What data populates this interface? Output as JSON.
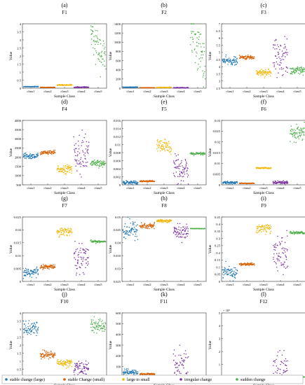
{
  "figure": {
    "ylabel": "Value",
    "xlabel": "Sample Class",
    "categories": [
      "class1",
      "class2",
      "class3",
      "class4",
      "class5"
    ]
  },
  "legend": {
    "items": [
      {
        "label": "stable change (large)",
        "color": "#1f77b4"
      },
      {
        "label": "stable Change (small)",
        "color": "#d95f02"
      },
      {
        "label": "large to small",
        "color": "#f2b705"
      },
      {
        "label": "irregular change",
        "color": "#7b2fa2"
      },
      {
        "label": "sudden change",
        "color": "#4daf4a"
      }
    ]
  },
  "chart_data": [
    {
      "type": "scatter",
      "panel": "(a)",
      "title": "F1",
      "ylim": [
        0,
        4
      ],
      "yticks": [
        "0",
        "0.5",
        "1",
        "1.5",
        "2",
        "2.5",
        "3",
        "3.5",
        "4"
      ],
      "tickvals": [
        0,
        0.5,
        1,
        1.5,
        2,
        2.5,
        3,
        3.5,
        4
      ],
      "y_multiplier": "",
      "classes": [
        {
          "center": 0.1,
          "spread": 0.02,
          "shape": "band"
        },
        {
          "center": 0.05,
          "spread": 0.02,
          "shape": "band"
        },
        {
          "center": 0.2,
          "spread": 0.04,
          "shape": "band"
        },
        {
          "center": 0.06,
          "spread": 0.03,
          "shape": "band"
        },
        {
          "center": 3.3,
          "spread": 2.2,
          "shape": "decay"
        }
      ]
    },
    {
      "type": "scatter",
      "panel": "(b)",
      "title": "F2",
      "ylim": [
        0,
        1400
      ],
      "yticks": [
        "0",
        "200",
        "400",
        "600",
        "800",
        "1000",
        "1200",
        "1400"
      ],
      "tickvals": [
        0,
        200,
        400,
        600,
        800,
        1000,
        1200,
        1400
      ],
      "y_multiplier": "",
      "classes": [
        {
          "center": 20,
          "spread": 10,
          "shape": "band"
        },
        {
          "center": 10,
          "spread": 6,
          "shape": "band"
        },
        {
          "center": 15,
          "spread": 10,
          "shape": "band"
        },
        {
          "center": 10,
          "spread": 8,
          "shape": "band"
        },
        {
          "center": 1250,
          "spread": 1000,
          "shape": "decay"
        }
      ]
    },
    {
      "type": "scatter",
      "panel": "(c)",
      "title": "F3",
      "ylim": [
        2.5,
        7
      ],
      "yticks": [
        "2.5",
        "3",
        "3.5",
        "4",
        "4.5",
        "5",
        "5.5",
        "6",
        "6.5",
        "7"
      ],
      "tickvals": [
        2.5,
        3,
        3.5,
        4,
        4.5,
        5,
        5.5,
        6,
        6.5,
        7
      ],
      "y_multiplier": "",
      "classes": [
        {
          "center": 4.4,
          "spread": 0.3,
          "shape": "band"
        },
        {
          "center": 4.65,
          "spread": 0.15,
          "shape": "band"
        },
        {
          "center": 3.6,
          "spread": 0.3,
          "shape": "band"
        },
        {
          "center": 4.7,
          "spread": 1.6,
          "shape": "irregular"
        },
        {
          "center": 3.7,
          "spread": 0.35,
          "shape": "band"
        }
      ]
    },
    {
      "type": "scatter",
      "panel": "(d)",
      "title": "F4",
      "ylim": [
        500,
        4000
      ],
      "yticks": [
        "500",
        "1000",
        "1500",
        "2000",
        "2500",
        "3000",
        "3500",
        "4000"
      ],
      "tickvals": [
        500,
        1000,
        1500,
        2000,
        2500,
        3000,
        3500,
        4000
      ],
      "y_multiplier": "",
      "classes": [
        {
          "center": 2050,
          "spread": 180,
          "shape": "band"
        },
        {
          "center": 2250,
          "spread": 120,
          "shape": "band"
        },
        {
          "center": 1350,
          "spread": 250,
          "shape": "band"
        },
        {
          "center": 2200,
          "spread": 1300,
          "shape": "irregular"
        },
        {
          "center": 1650,
          "spread": 200,
          "shape": "band"
        }
      ]
    },
    {
      "type": "scatter",
      "panel": "(e)",
      "title": "F5",
      "ylim": [
        0,
        0.016
      ],
      "yticks": [
        "0",
        "0.002",
        "0.004",
        "0.006",
        "0.008",
        "0.01",
        "0.012",
        "0.014",
        "0.016"
      ],
      "tickvals": [
        0,
        0.002,
        0.004,
        0.006,
        0.008,
        0.01,
        0.012,
        0.014,
        0.016
      ],
      "y_multiplier": "",
      "classes": [
        {
          "center": 0.0006,
          "spread": 0.0005,
          "shape": "band"
        },
        {
          "center": 0.0009,
          "spread": 0.0002,
          "shape": "band"
        },
        {
          "center": 0.0095,
          "spread": 0.002,
          "shape": "band"
        },
        {
          "center": 0.004,
          "spread": 0.004,
          "shape": "irregular"
        },
        {
          "center": 0.0077,
          "spread": 0.0004,
          "shape": "band"
        }
      ]
    },
    {
      "type": "scatter",
      "panel": "(f)",
      "title": "F6",
      "ylim": [
        0,
        0.03
      ],
      "yticks": [
        "0",
        "0.005",
        "0.01",
        "0.015",
        "0.02",
        "0.025",
        "0.03"
      ],
      "tickvals": [
        0,
        0.005,
        0.01,
        0.015,
        0.02,
        0.025,
        0.03
      ],
      "y_multiplier": "",
      "classes": [
        {
          "center": 0.001,
          "spread": 0.0008,
          "shape": "band"
        },
        {
          "center": 0.0007,
          "spread": 0.0002,
          "shape": "band"
        },
        {
          "center": 0.0078,
          "spread": 0.0004,
          "shape": "band"
        },
        {
          "center": 0.001,
          "spread": 0.0008,
          "shape": "band"
        },
        {
          "center": 0.0235,
          "spread": 0.004,
          "shape": "band"
        }
      ]
    },
    {
      "type": "scatter",
      "panel": "(g)",
      "title": "F7",
      "ylim": [
        0,
        0.025
      ],
      "yticks": [
        "0",
        "0.005",
        "0.01",
        "0.015",
        "0.02",
        "0.025"
      ],
      "tickvals": [
        0,
        0.005,
        0.01,
        0.015,
        0.02,
        0.025
      ],
      "y_multiplier": "",
      "classes": [
        {
          "center": 0.0035,
          "spread": 0.0025,
          "shape": "band"
        },
        {
          "center": 0.0057,
          "spread": 0.0008,
          "shape": "band"
        },
        {
          "center": 0.0195,
          "spread": 0.002,
          "shape": "band"
        },
        {
          "center": 0.009,
          "spread": 0.007,
          "shape": "irregular"
        },
        {
          "center": 0.0155,
          "spread": 0.0005,
          "shape": "band"
        }
      ]
    },
    {
      "type": "scatter",
      "panel": "(h)",
      "title": "F8",
      "ylim": [
        0.025,
        0.05
      ],
      "yticks": [
        "0.025",
        "0.03",
        "0.035",
        "0.04",
        "0.045",
        "0.05"
      ],
      "tickvals": [
        0.025,
        0.03,
        0.035,
        0.04,
        0.045,
        0.05
      ],
      "y_multiplier": "",
      "classes": [
        {
          "center": 0.045,
          "spread": 0.004,
          "shape": "band"
        },
        {
          "center": 0.0465,
          "spread": 0.0015,
          "shape": "band"
        },
        {
          "center": 0.0485,
          "spread": 0.0005,
          "shape": "band"
        },
        {
          "center": 0.044,
          "spread": 0.004,
          "shape": "irregular"
        },
        {
          "center": 0.0455,
          "spread": 0.0002,
          "shape": "line"
        }
      ]
    },
    {
      "type": "scatter",
      "panel": "(i)",
      "title": "F9",
      "ylim": [
        0,
        0.45
      ],
      "yticks": [
        "0",
        "0.05",
        "0.1",
        "0.15",
        "0.2",
        "0.25",
        "0.3",
        "0.35",
        "0.4",
        "0.45"
      ],
      "tickvals": [
        0,
        0.05,
        0.1,
        0.15,
        0.2,
        0.25,
        0.3,
        0.35,
        0.4,
        0.45
      ],
      "y_multiplier": "",
      "classes": [
        {
          "center": 0.06,
          "spread": 0.05,
          "shape": "band"
        },
        {
          "center": 0.12,
          "spread": 0.01,
          "shape": "band"
        },
        {
          "center": 0.37,
          "spread": 0.04,
          "shape": "band"
        },
        {
          "center": 0.2,
          "spread": 0.16,
          "shape": "irregular"
        },
        {
          "center": 0.34,
          "spread": 0.01,
          "shape": "band"
        }
      ]
    },
    {
      "type": "scatter",
      "panel": "(j)",
      "title": "F10",
      "ylim": [
        0,
        4
      ],
      "yticks": [
        "0",
        "0.5",
        "1",
        "1.5",
        "2",
        "2.5",
        "3",
        "3.5",
        "4"
      ],
      "tickvals": [
        0,
        0.5,
        1,
        1.5,
        2,
        2.5,
        3,
        3.5,
        4
      ],
      "y_multiplier": "",
      "classes": [
        {
          "center": 3.0,
          "spread": 0.5,
          "shape": "band"
        },
        {
          "center": 1.4,
          "spread": 0.3,
          "shape": "band"
        },
        {
          "center": 0.9,
          "spread": 0.25,
          "shape": "band"
        },
        {
          "center": 0.6,
          "spread": 0.5,
          "shape": "irregular"
        },
        {
          "center": 3.2,
          "spread": 0.5,
          "shape": "band"
        }
      ]
    },
    {
      "type": "scatter",
      "panel": "(k)",
      "title": "F11",
      "ylim": [
        0,
        600
      ],
      "yticks": [
        "0",
        "100",
        "200",
        "300",
        "400",
        "500",
        "600"
      ],
      "tickvals": [
        0,
        100,
        200,
        300,
        400,
        500,
        600
      ],
      "y_multiplier": "",
      "classes": [
        {
          "center": 45,
          "spread": 30,
          "shape": "band"
        },
        {
          "center": 30,
          "spread": 10,
          "shape": "band"
        },
        {
          "center": 5,
          "spread": 4,
          "shape": "band"
        },
        {
          "center": 80,
          "spread": 250,
          "shape": "irregular"
        },
        {
          "center": 5,
          "spread": 3,
          "shape": "band"
        }
      ]
    },
    {
      "type": "scatter",
      "panel": "(l)",
      "title": "F12",
      "ylim": [
        0,
        5
      ],
      "yticks": [
        "0",
        "1",
        "2",
        "3",
        "4",
        "5"
      ],
      "tickvals": [
        0,
        1,
        2,
        3,
        4,
        5
      ],
      "y_multiplier": "× 10⁵",
      "classes": [
        {
          "center": 0.05,
          "spread": 0.03,
          "shape": "band"
        },
        {
          "center": 0.05,
          "spread": 0.02,
          "shape": "band"
        },
        {
          "center": 0.03,
          "spread": 0.02,
          "shape": "band"
        },
        {
          "center": 0.3,
          "spread": 1.8,
          "shape": "irregular"
        },
        {
          "center": 0.03,
          "spread": 0.02,
          "shape": "band"
        }
      ]
    }
  ]
}
